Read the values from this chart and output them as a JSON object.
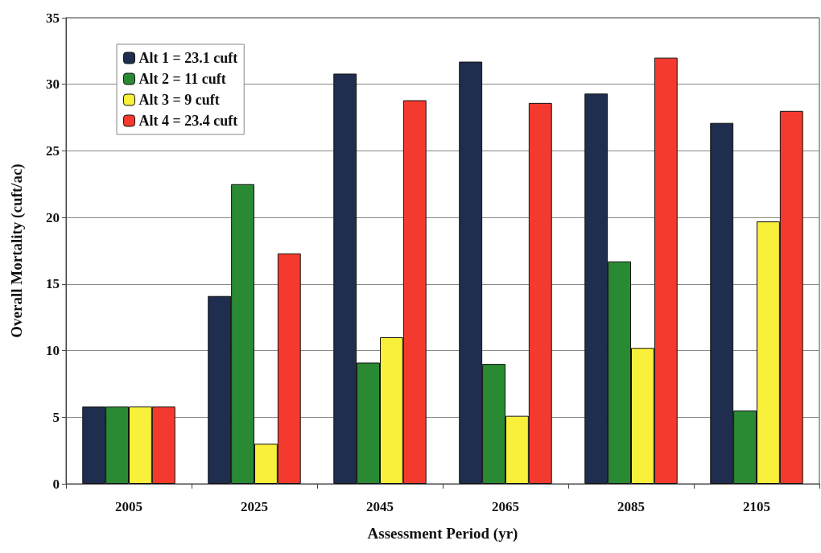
{
  "chart_data": {
    "type": "bar",
    "xlabel": "Assessment Period (yr)",
    "ylabel": "Overall Mortality (cuft/ac)",
    "categories": [
      "2005",
      "2025",
      "2045",
      "2065",
      "2085",
      "2105"
    ],
    "series": [
      {
        "name": "Alt 1 = 23.1 cuft",
        "color": "#1f2d4f",
        "values": [
          5.8,
          14.1,
          30.8,
          31.7,
          29.3,
          27.1
        ]
      },
      {
        "name": "Alt 2 = 11 cuft",
        "color": "#2a8a34",
        "values": [
          5.8,
          22.5,
          9.1,
          9.0,
          16.7,
          5.5
        ]
      },
      {
        "name": "Alt 3 = 9 cuft",
        "color": "#f8f03a",
        "values": [
          5.8,
          3.0,
          11.0,
          5.1,
          10.2,
          19.7
        ]
      },
      {
        "name": "Alt 4 = 23.4 cuft",
        "color": "#f43a2e",
        "values": [
          5.8,
          17.3,
          28.8,
          28.6,
          32.0,
          28.0
        ]
      }
    ],
    "ylim": [
      0,
      35
    ],
    "yticks": [
      0,
      5,
      10,
      15,
      20,
      25,
      30,
      35
    ],
    "grid": "y",
    "legend": "top left"
  }
}
